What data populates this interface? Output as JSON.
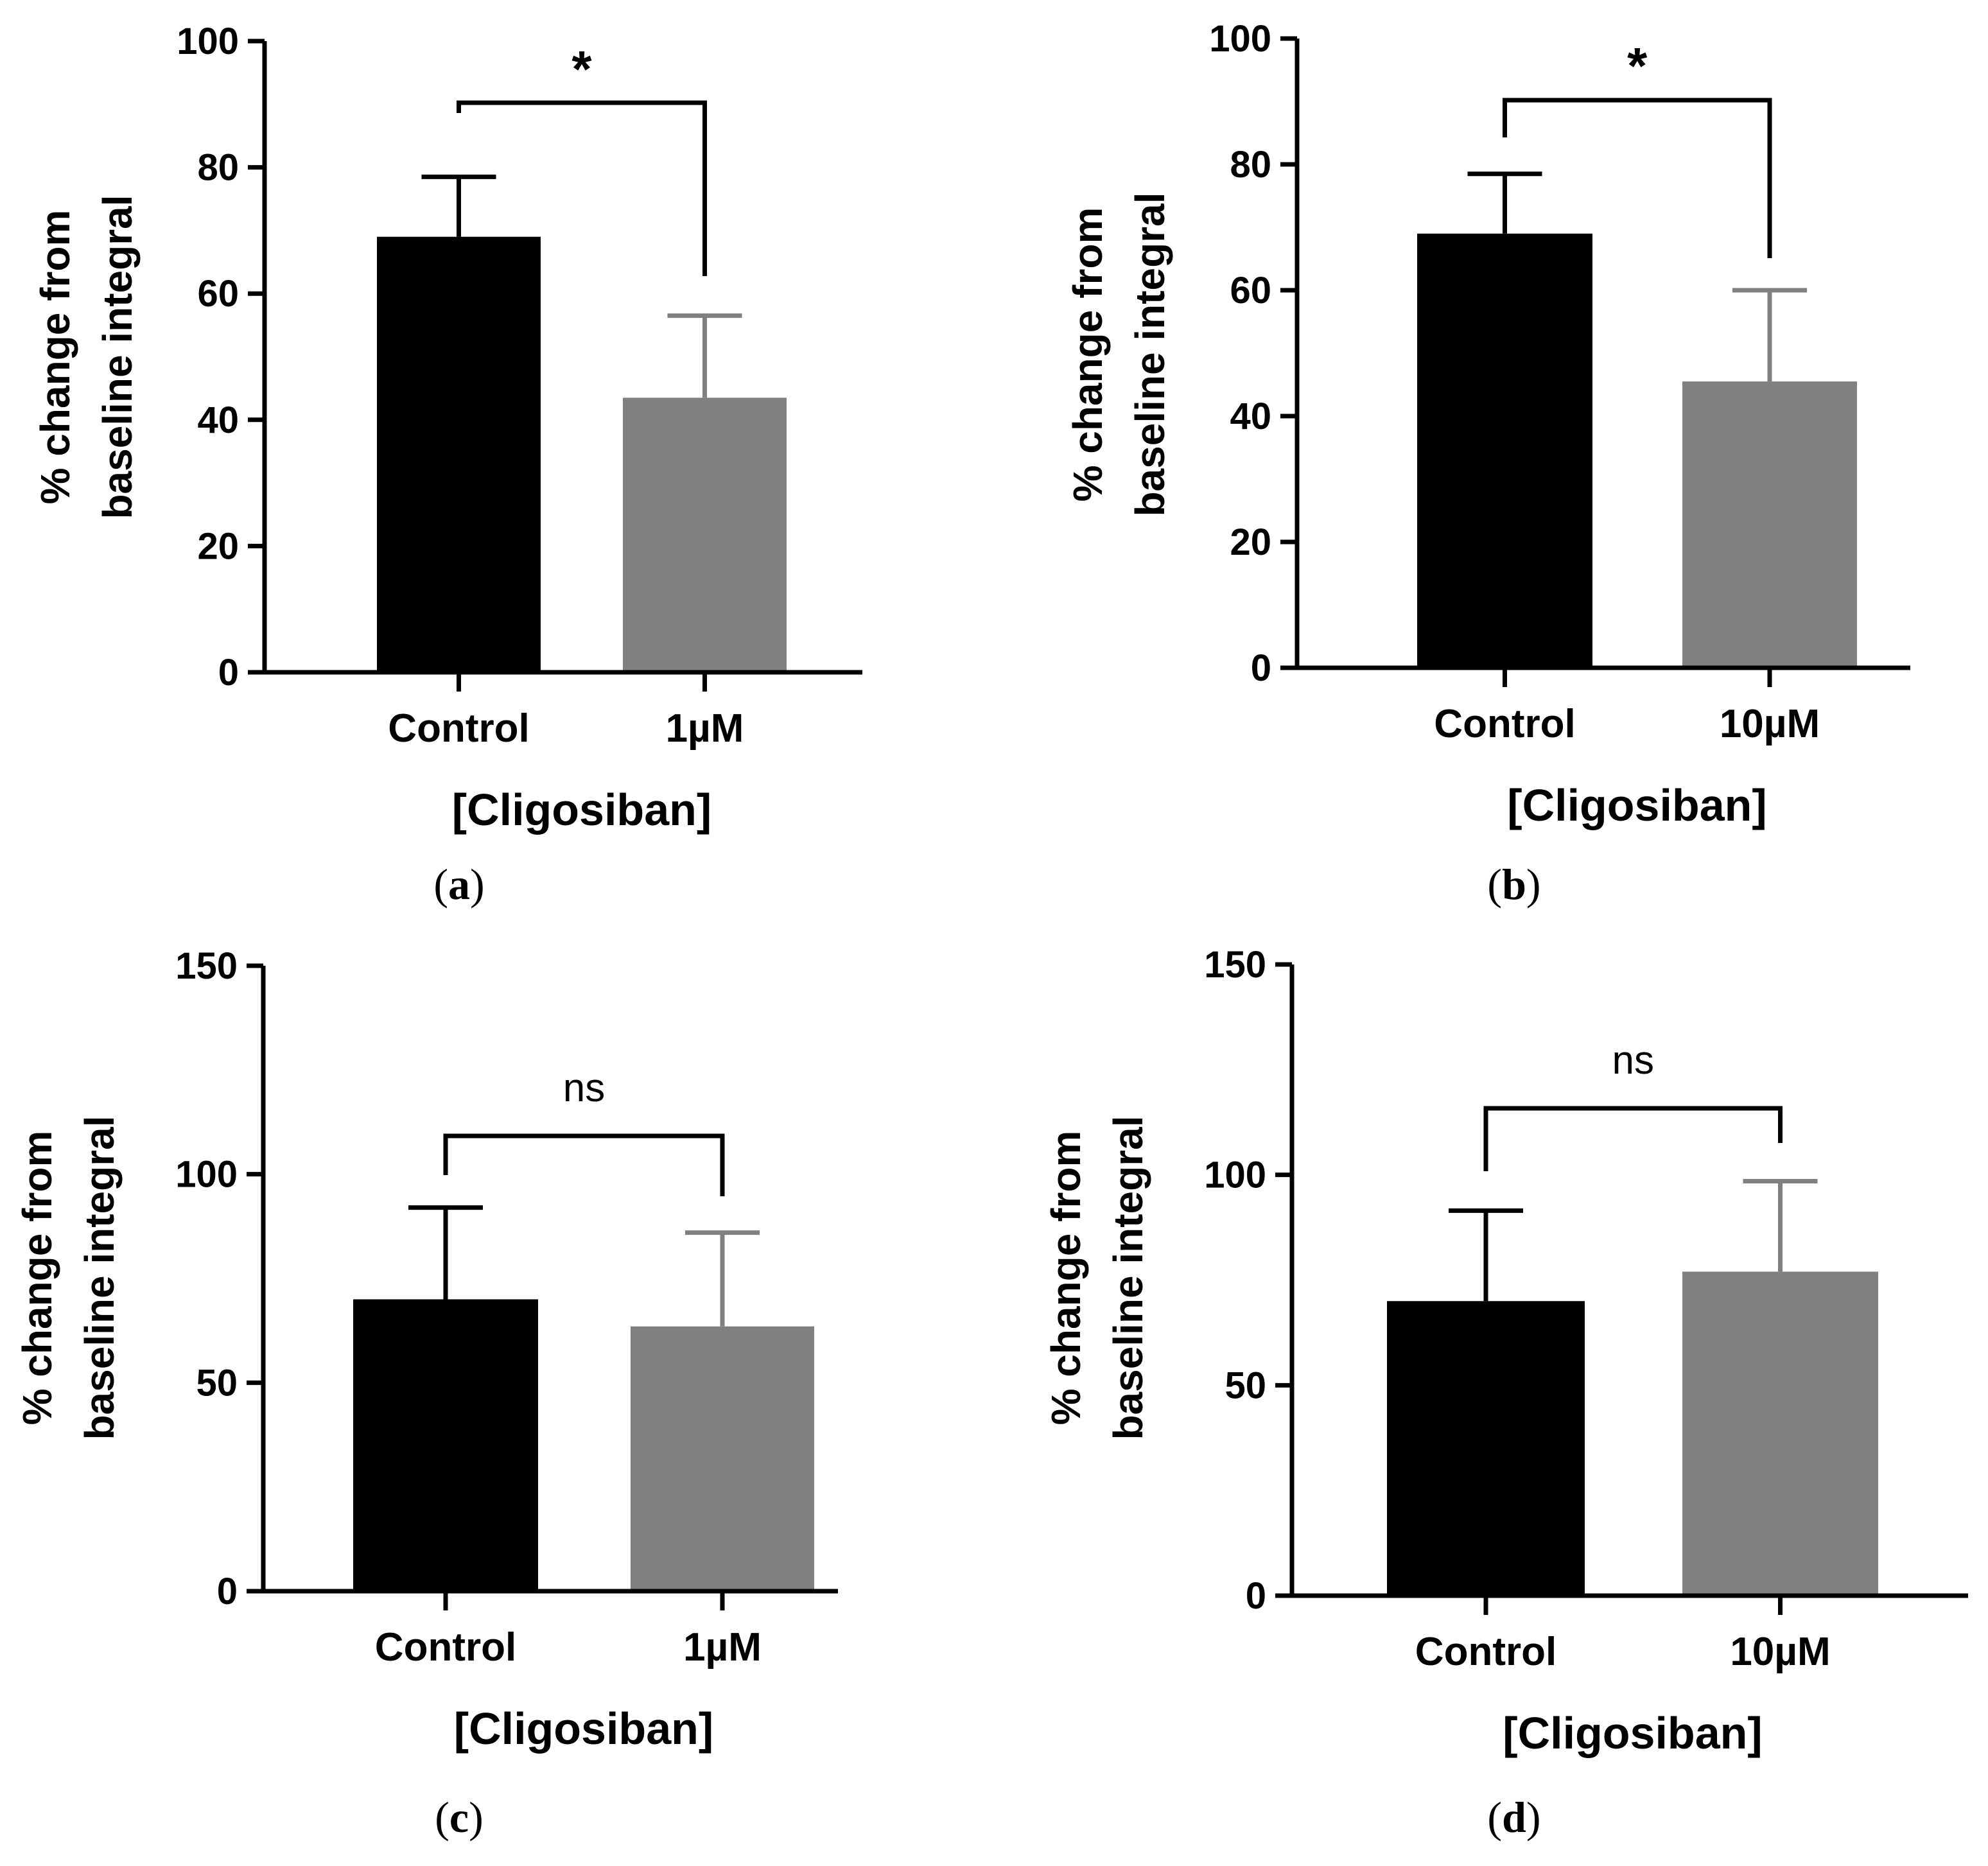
{
  "colors": {
    "control": "#000000",
    "treatment": "#808080",
    "axis": "#000000"
  },
  "chart_data": [
    {
      "panel": "(a)",
      "type": "bar",
      "categories": [
        "Control",
        "1µM"
      ],
      "values": [
        69,
        43.5
      ],
      "errors": [
        9.5,
        13
      ],
      "ylim": [
        0,
        100
      ],
      "yticks": [
        0,
        20,
        40,
        60,
        80,
        100
      ],
      "ylabel_line1": "% change from",
      "ylabel_line2": "baseline integral",
      "xlabel": "[Cligosiban]",
      "significance": "*"
    },
    {
      "panel": "(b)",
      "type": "bar",
      "categories": [
        "Control",
        "10µM"
      ],
      "values": [
        69,
        45.5
      ],
      "errors": [
        9.5,
        14.5
      ],
      "ylim": [
        0,
        100
      ],
      "yticks": [
        0,
        20,
        40,
        60,
        80,
        100
      ],
      "ylabel_line1": "% change from",
      "ylabel_line2": "baseline integral",
      "xlabel": "[Cligosiban]",
      "significance": "*"
    },
    {
      "panel": "(c)",
      "type": "bar",
      "categories": [
        "Control",
        "1µM"
      ],
      "values": [
        70,
        63.5
      ],
      "errors": [
        22,
        22.5
      ],
      "ylim": [
        0,
        150
      ],
      "yticks": [
        0,
        50,
        100,
        150
      ],
      "ylabel_line1": "% change from",
      "ylabel_line2": "baseline integral",
      "xlabel": "[Cligosiban]",
      "significance": "ns"
    },
    {
      "panel": "(d)",
      "type": "bar",
      "categories": [
        "Control",
        "10µM"
      ],
      "values": [
        70,
        77
      ],
      "errors": [
        21.5,
        21.5
      ],
      "ylim": [
        0,
        150
      ],
      "yticks": [
        0,
        50,
        100,
        150
      ],
      "ylabel_line1": "% change from",
      "ylabel_line2": "baseline integral",
      "xlabel": "[Cligosiban]",
      "significance": "ns"
    }
  ]
}
